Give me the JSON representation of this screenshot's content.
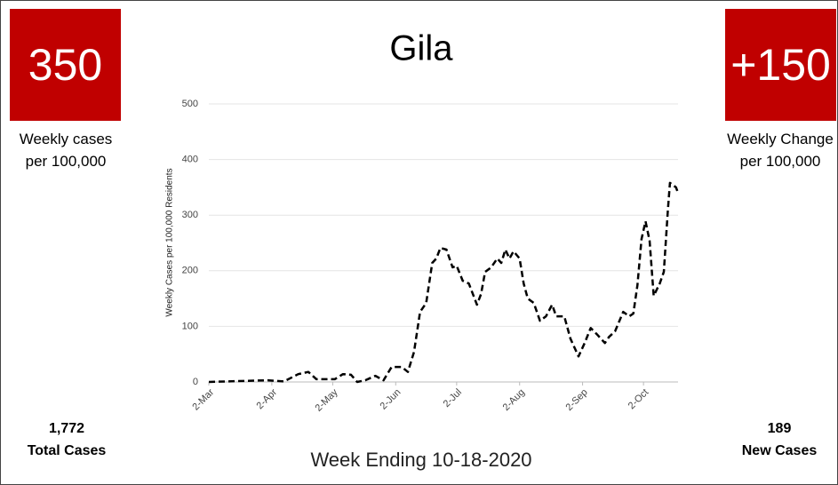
{
  "chart_data": {
    "type": "line",
    "title": "Gila",
    "ylabel": "Weekly Cases per 100,000 Residents",
    "x": [
      0,
      29,
      37,
      44,
      49,
      53,
      62,
      66,
      70,
      73,
      77,
      82,
      86,
      90,
      95,
      98,
      101,
      104,
      107,
      110,
      112,
      114,
      117,
      120,
      122,
      125,
      128,
      132,
      134,
      136,
      139,
      142,
      144,
      146,
      148,
      150,
      153,
      155,
      157,
      160,
      163,
      166,
      169,
      171,
      175,
      178,
      182,
      185,
      188,
      191,
      195,
      197,
      200,
      204,
      207,
      209,
      211,
      213,
      215,
      217,
      219,
      222,
      224,
      226,
      227,
      230,
      231
    ],
    "values": [
      0,
      3,
      1,
      14,
      18,
      5,
      5,
      14,
      13,
      0,
      3,
      11,
      3,
      27,
      27,
      18,
      54,
      126,
      142,
      214,
      222,
      241,
      238,
      206,
      209,
      182,
      177,
      139,
      158,
      198,
      206,
      222,
      214,
      238,
      222,
      235,
      222,
      177,
      150,
      142,
      110,
      118,
      139,
      118,
      118,
      78,
      46,
      70,
      97,
      86,
      70,
      81,
      91,
      126,
      118,
      123,
      174,
      257,
      289,
      254,
      155,
      177,
      198,
      310,
      358,
      350,
      340
    ],
    "color": "#000000",
    "dashed": true,
    "xlim": [
      0,
      231
    ],
    "xticks": [
      {
        "value": 0,
        "label": "2-Mar"
      },
      {
        "value": 31,
        "label": "2-Apr"
      },
      {
        "value": 61,
        "label": "2-May"
      },
      {
        "value": 92,
        "label": "2-Jun"
      },
      {
        "value": 122,
        "label": "2-Jul"
      },
      {
        "value": 153,
        "label": "2-Aug"
      },
      {
        "value": 184,
        "label": "2-Sep"
      },
      {
        "value": 214,
        "label": "2-Oct"
      }
    ],
    "ylim": [
      0,
      500
    ],
    "yticks": [
      0,
      100,
      200,
      300,
      400,
      500
    ],
    "grid": true
  },
  "left_panel": {
    "value": "350",
    "label": "Weekly cases per 100,000",
    "total": "1,772",
    "total_label": "Total Cases"
  },
  "right_panel": {
    "value": "+150",
    "label": "Weekly Change per 100,000",
    "total": "189",
    "total_label": "New Cases"
  },
  "footer": "Week Ending 10-18-2020"
}
